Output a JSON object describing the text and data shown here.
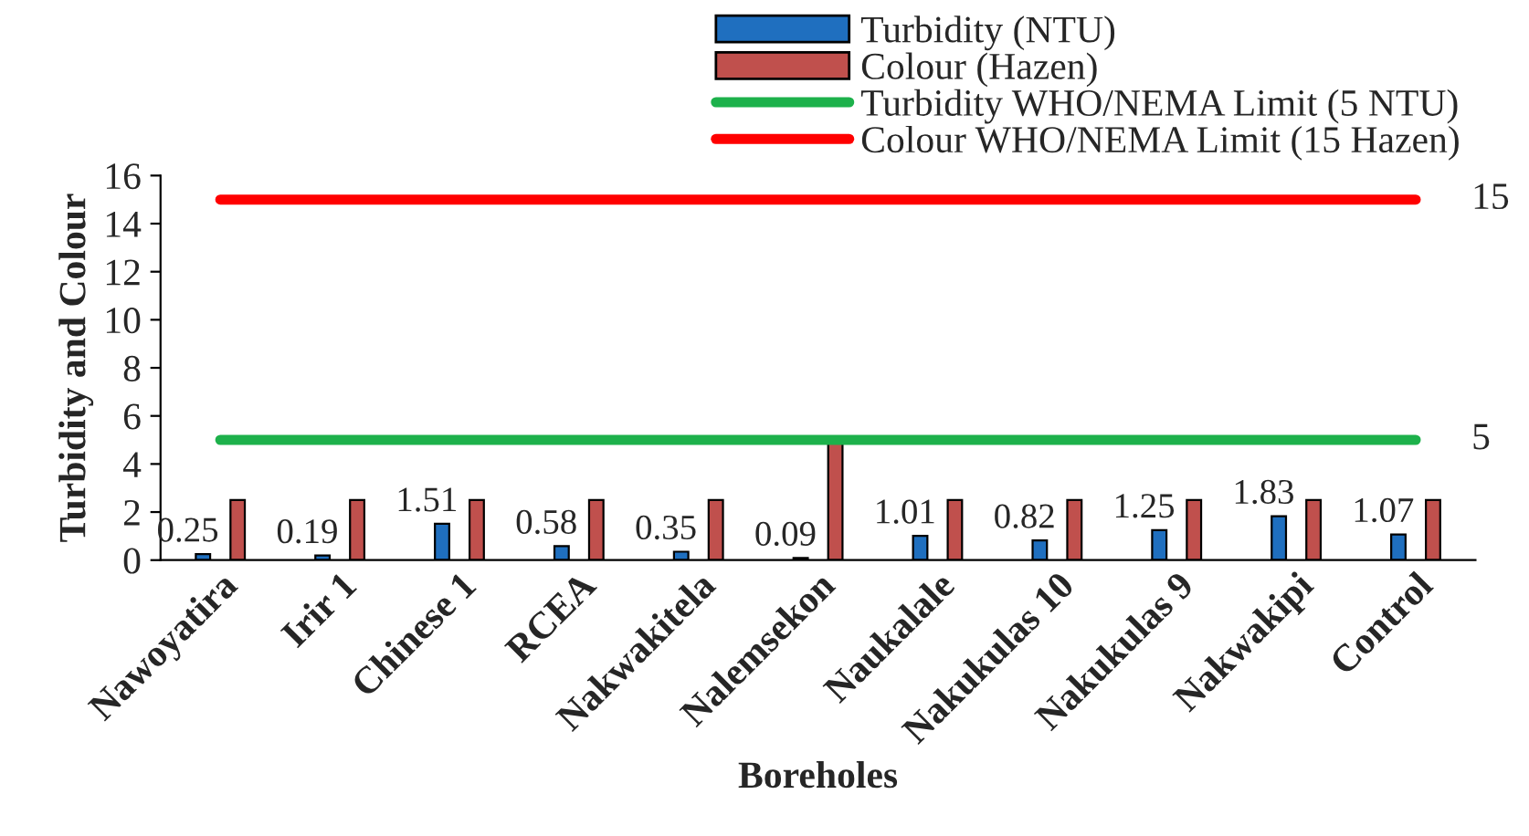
{
  "chart_data": {
    "type": "bar",
    "xlabel": "Boreholes",
    "ylabel": "Turbidity and Colour",
    "categories": [
      "Nawoyatira",
      "Irir 1",
      "Chinese 1",
      "RCEA",
      "Nakwakitela",
      "Nalemsekon",
      "Naukalale",
      "Nakukulas 10",
      "Nakukulas 9",
      "Nakwakipi",
      "Control"
    ],
    "series": [
      {
        "name": "Turbidity (NTU)",
        "color": "#1f6fbf",
        "values": [
          0.25,
          0.19,
          1.51,
          0.58,
          0.35,
          0.09,
          1.01,
          0.82,
          1.25,
          1.83,
          1.07
        ],
        "value_labels": [
          "0.25",
          "0.19",
          "1.51",
          "0.58",
          "0.35",
          "0.09",
          "1.01",
          "0.82",
          "1.25",
          "1.83",
          "1.07"
        ]
      },
      {
        "name": "Colour (Hazen)",
        "color": "#c0504d",
        "values": [
          2.5,
          2.5,
          2.5,
          2.5,
          2.5,
          5,
          2.5,
          2.5,
          2.5,
          2.5,
          2.5
        ]
      },
      {
        "name": "Turbidity WHO/NEMA Limit (5 NTU)",
        "type": "line",
        "color": "#1db14b",
        "values": [
          5,
          5,
          5,
          5,
          5,
          5,
          5,
          5,
          5,
          5,
          5
        ]
      },
      {
        "name": "Colour WHO/NEMA Limit (15 Hazen)",
        "type": "line",
        "color": "#ff0000",
        "values": [
          15,
          15,
          15,
          15,
          15,
          15,
          15,
          15,
          15,
          15,
          15
        ]
      }
    ],
    "annotations": [
      {
        "text": "15",
        "x": "Control",
        "y": 15
      },
      {
        "text": "5",
        "x": "Control",
        "y": 5
      }
    ],
    "ylim": [
      0,
      16
    ],
    "yticks": [
      0,
      2,
      4,
      6,
      8,
      10,
      12,
      14,
      16
    ],
    "grid": false,
    "legend": "top right"
  }
}
